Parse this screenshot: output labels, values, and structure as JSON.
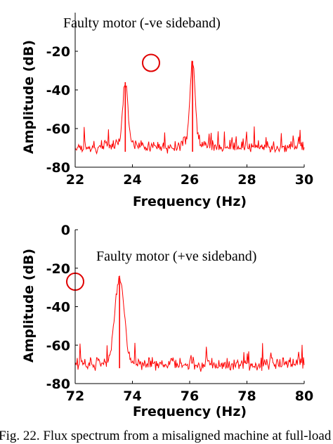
{
  "caption": "Fig. 22. Flux spectrum from a misaligned machine at full-load",
  "chart_data": [
    {
      "type": "line",
      "annotation": "Faulty motor (-ve sideband)",
      "xlabel": "Frequency (Hz)",
      "ylabel": "Amplitude (dB)",
      "xlim": [
        22,
        30
      ],
      "ylim": [
        -80,
        0
      ],
      "xticks": [
        "22",
        "24",
        "26",
        "28",
        "30"
      ],
      "yticks": [
        "-80",
        "-60",
        "-40",
        "-20"
      ],
      "grid": false,
      "line_color": "#ff0000",
      "noise_floor_db": -72,
      "noise_range_db": [
        -80,
        -61
      ],
      "peaks": [
        {
          "x": 23.75,
          "y": -36
        },
        {
          "x": 26.1,
          "y": -25
        }
      ],
      "marker": {
        "shape": "circle",
        "color": "#e00000",
        "x": 24.65,
        "y": -26
      }
    },
    {
      "type": "line",
      "annotation": "Faulty motor (+ve sideband)",
      "xlabel": "Frequency (Hz)",
      "ylabel": "Amplitude (dB)",
      "xlim": [
        72,
        80
      ],
      "ylim": [
        -80,
        0
      ],
      "xticks": [
        "72",
        "74",
        "76",
        "78",
        "80"
      ],
      "yticks": [
        "-80",
        "-60",
        "-40",
        "-20",
        "0"
      ],
      "grid": false,
      "line_color": "#ff0000",
      "noise_floor_db": -72,
      "noise_range_db": [
        -80,
        -61
      ],
      "peaks": [
        {
          "x": 73.55,
          "y": -25
        }
      ],
      "marker": {
        "shape": "circle",
        "color": "#e00000",
        "x": 72.0,
        "y": -27
      }
    }
  ]
}
